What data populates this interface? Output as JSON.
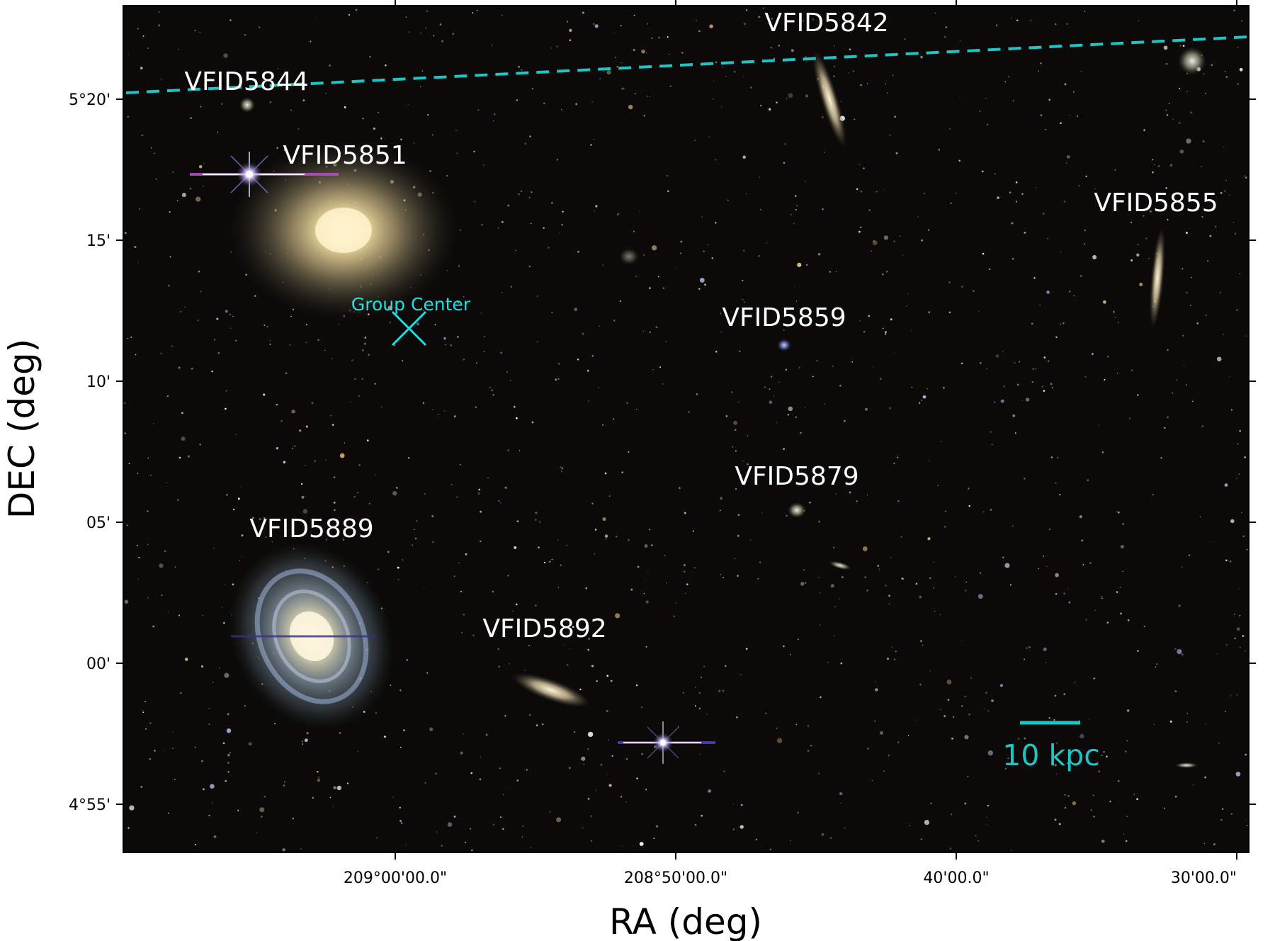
{
  "figure": {
    "image_description": "sky",
    "background_color": "#0b0a08",
    "accent_color": "#1fc4c4"
  },
  "axes": {
    "xlabel": "RA (deg)",
    "ylabel": "DEC (deg)",
    "x_ticks": [
      "209°00'00.0\"",
      "208°50'00.0\"",
      "40'00.0\"",
      "30'00.0\""
    ],
    "y_ticks": [
      "5°20'",
      "15'",
      "10'",
      "05'",
      "00'",
      "4°55'"
    ]
  },
  "galaxies": [
    {
      "id": "VFID5844",
      "label": "VFID5844"
    },
    {
      "id": "VFID5851",
      "label": "VFID5851"
    },
    {
      "id": "VFID5842",
      "label": "VFID5842"
    },
    {
      "id": "VFID5855",
      "label": "VFID5855"
    },
    {
      "id": "VFID5859",
      "label": "VFID5859"
    },
    {
      "id": "VFID5879",
      "label": "VFID5879"
    },
    {
      "id": "VFID5889",
      "label": "VFID5889"
    },
    {
      "id": "VFID5892",
      "label": "VFID5892"
    }
  ],
  "annotations": {
    "group_center_label": "Group Center",
    "scale_bar_label": "10 kpc"
  }
}
